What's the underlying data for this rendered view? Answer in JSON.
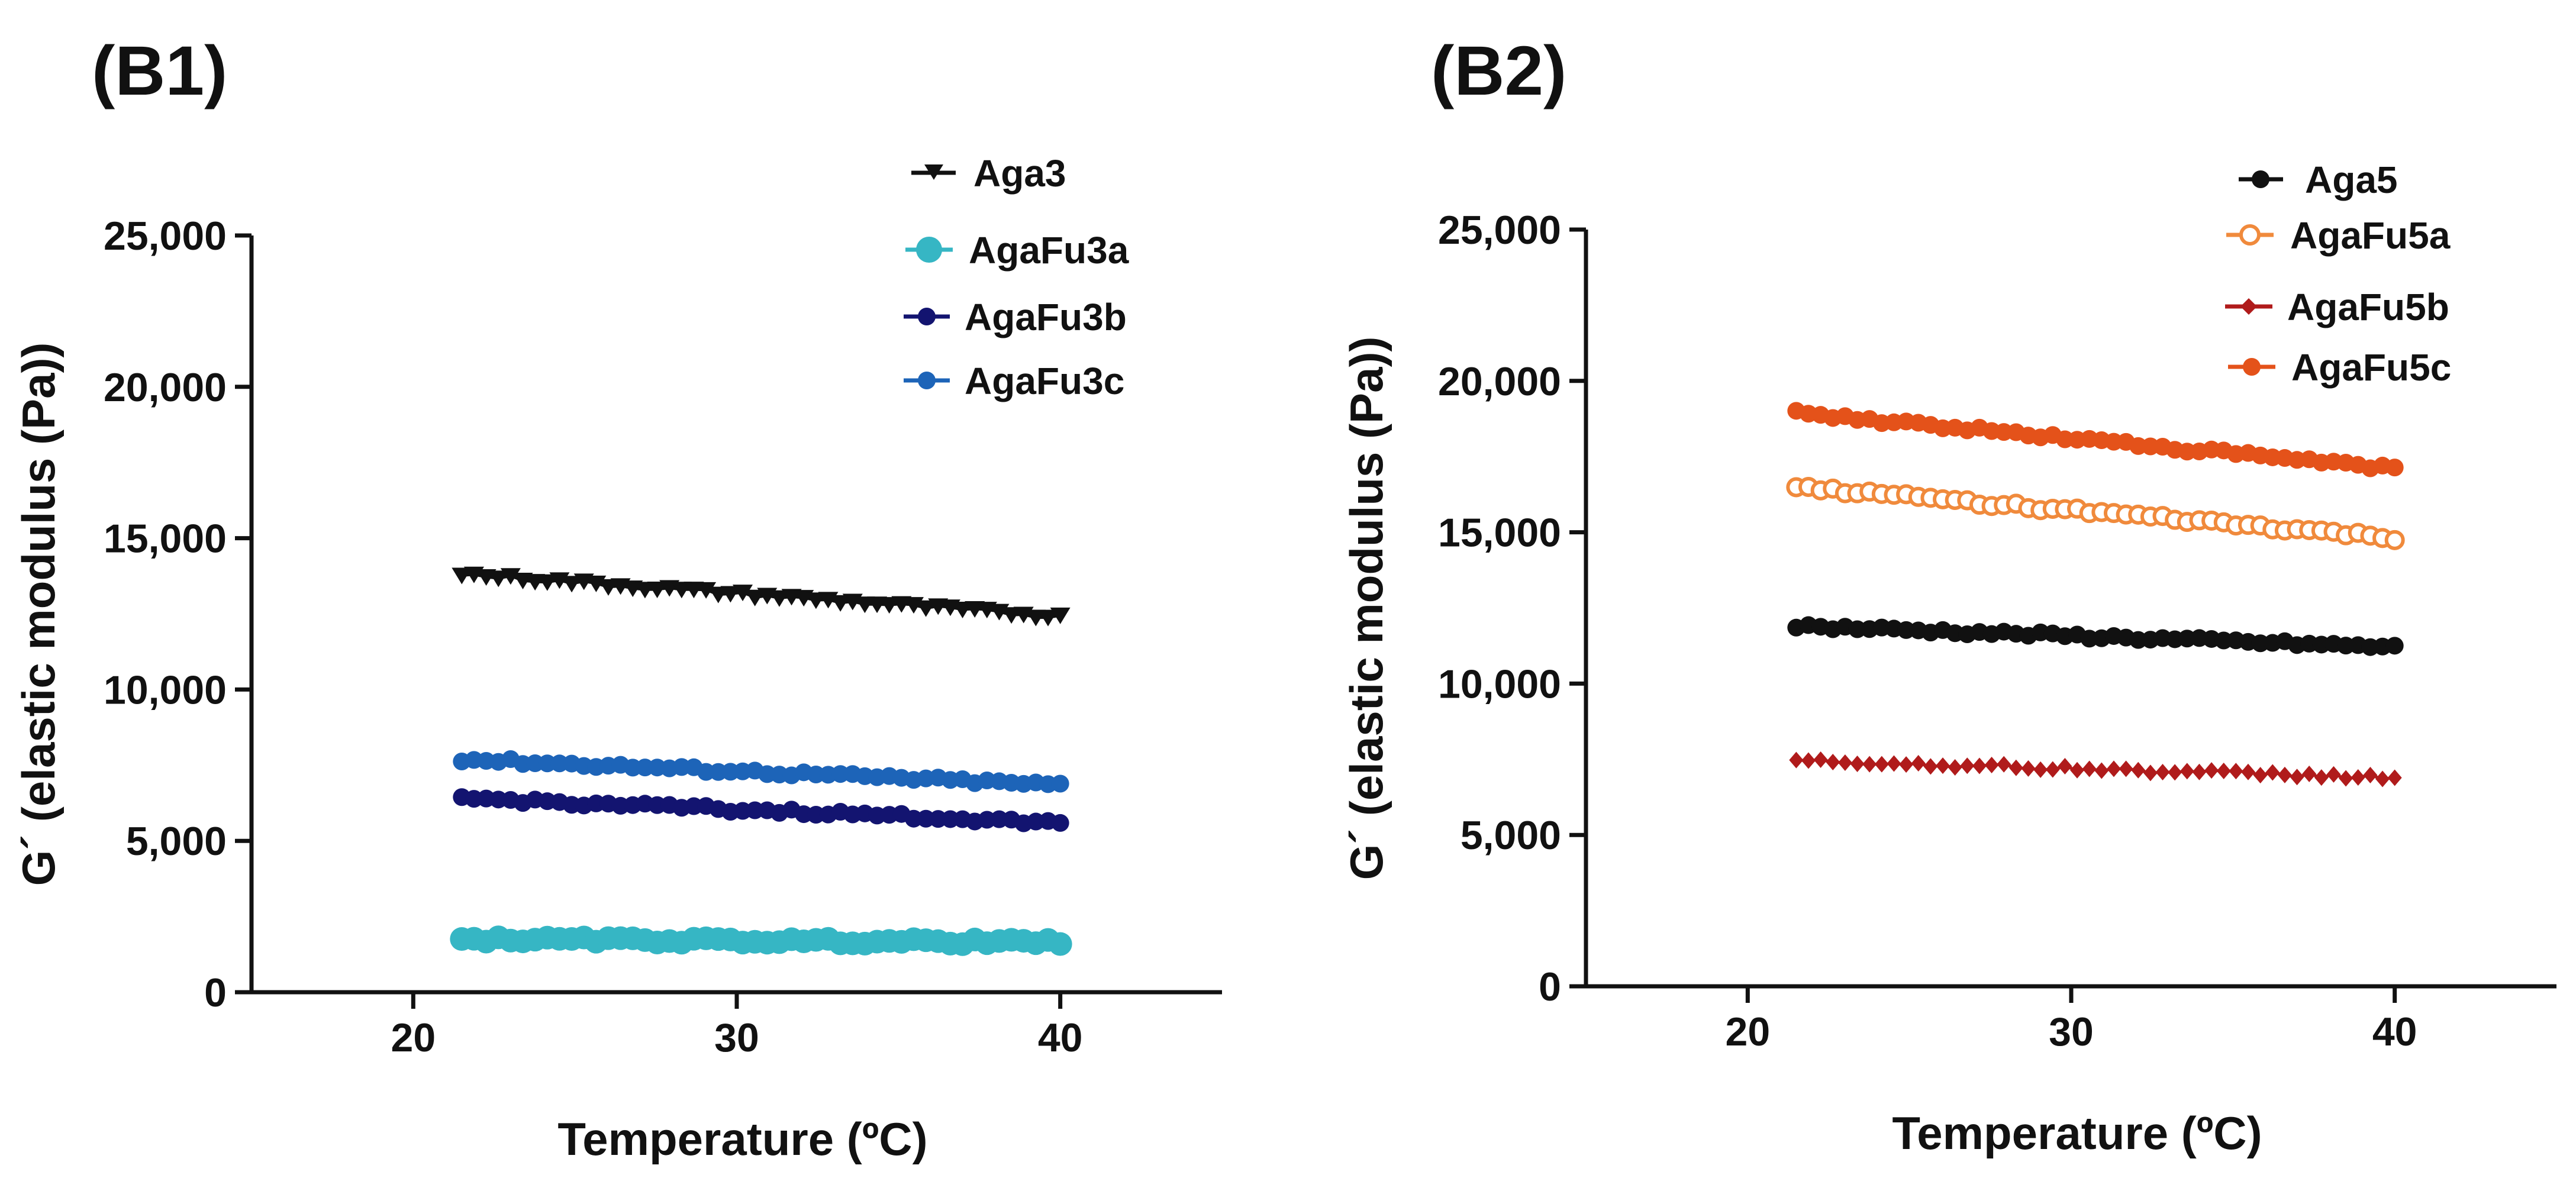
{
  "chart_data": [
    {
      "panel_label": "(B1)",
      "type": "scatter",
      "xlabel": "Temperature (ºC)",
      "ylabel": "G´ (elastic  modulus (Pa))",
      "xlim": [
        15,
        45
      ],
      "ylim": [
        0,
        25000
      ],
      "xticks": [
        20,
        30,
        40
      ],
      "xtick_labels": [
        "20",
        "30",
        "40"
      ],
      "yticks": [
        0,
        5000,
        10000,
        15000,
        20000,
        25000
      ],
      "ytick_labels": [
        "0",
        "5,000",
        "10,000",
        "15,000",
        "20,000",
        "25,000"
      ],
      "grid": false,
      "legend_position": "top-right",
      "series": [
        {
          "name": "Aga3",
          "color": "#111111",
          "marker": "triangle-down",
          "x_range": [
            21.5,
            40
          ],
          "y_start": 13800,
          "y_end": 12400
        },
        {
          "name": "AgaFu3a",
          "color": "#36b6c4",
          "marker": "circle-large",
          "x_range": [
            21.5,
            40
          ],
          "y_start": 1750,
          "y_end": 1650
        },
        {
          "name": "AgaFu3b",
          "color": "#131470",
          "marker": "circle",
          "x_range": [
            21.5,
            40
          ],
          "y_start": 6400,
          "y_end": 5600
        },
        {
          "name": "AgaFu3c",
          "color": "#1d64b8",
          "marker": "circle",
          "x_range": [
            21.5,
            40
          ],
          "y_start": 7700,
          "y_end": 6850
        }
      ]
    },
    {
      "panel_label": "(B2)",
      "type": "scatter",
      "xlabel": "Temperature (ºC)",
      "ylabel": "G´ (elastic modulus (Pa))",
      "xlim": [
        15,
        45
      ],
      "ylim": [
        0,
        25000
      ],
      "xticks": [
        20,
        30,
        40
      ],
      "xtick_labels": [
        "20",
        "30",
        "40"
      ],
      "yticks": [
        0,
        5000,
        10000,
        15000,
        20000,
        25000
      ],
      "ytick_labels": [
        "0",
        "5,000",
        "10,000",
        "15,000",
        "20,000",
        "25,000"
      ],
      "grid": false,
      "legend_position": "top-right",
      "series": [
        {
          "name": "Aga5",
          "color": "#111111",
          "marker": "circle",
          "x_range": [
            21.5,
            40
          ],
          "y_start": 11900,
          "y_end": 11200
        },
        {
          "name": "AgaFu5a",
          "color": "#f08a3c",
          "marker": "circle-open",
          "x_range": [
            21.5,
            40
          ],
          "y_start": 16500,
          "y_end": 14800
        },
        {
          "name": "AgaFu5b",
          "color": "#b01b1b",
          "marker": "diamond",
          "x_range": [
            21.5,
            40
          ],
          "y_start": 7450,
          "y_end": 6900
        },
        {
          "name": "AgaFu5c",
          "color": "#e4521a",
          "marker": "circle",
          "x_range": [
            21.5,
            40
          ],
          "y_start": 18950,
          "y_end": 17100
        }
      ]
    }
  ]
}
